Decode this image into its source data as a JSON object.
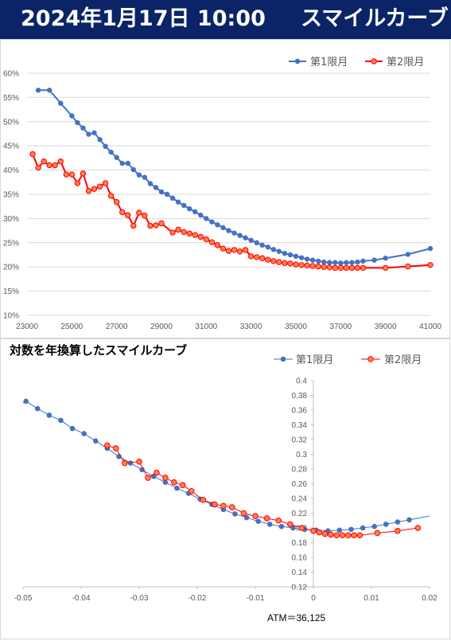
{
  "header": {
    "date_time": "2024年1月17日 10:00",
    "title": "スマイルカーブ"
  },
  "chart2_heading": "対数を年換算したスマイルカーブ",
  "atm_label": "ATM＝36,125",
  "chart_data": [
    {
      "type": "line",
      "x_ticks": [
        "23000",
        "25000",
        "27000",
        "29000",
        "31000",
        "33000",
        "35000",
        "37000",
        "39000",
        "41000"
      ],
      "y_ticks": [
        "10%",
        "15%",
        "20%",
        "25%",
        "30%",
        "35%",
        "40%",
        "45%",
        "50%",
        "55%",
        "60%"
      ],
      "xlim": [
        23000,
        41000
      ],
      "ylim": [
        0.1,
        0.6
      ],
      "grid": "horizontal",
      "legend": "top-right",
      "series": [
        {
          "name": "第1限月",
          "color": "#4472c4",
          "x": [
            23500,
            24000,
            24500,
            25000,
            25250,
            25500,
            25750,
            26000,
            26250,
            26500,
            26750,
            27000,
            27250,
            27500,
            27750,
            28000,
            28250,
            28500,
            28750,
            29000,
            29250,
            29500,
            29750,
            30000,
            30250,
            30500,
            30750,
            31000,
            31250,
            31500,
            31750,
            32000,
            32250,
            32500,
            32750,
            33000,
            33250,
            33500,
            33750,
            34000,
            34250,
            34500,
            34750,
            35000,
            35250,
            35500,
            35750,
            36000,
            36250,
            36500,
            36750,
            37000,
            37250,
            37500,
            37750,
            38000,
            38500,
            39000,
            40000,
            41000
          ],
          "y": [
            0.565,
            0.565,
            0.538,
            0.512,
            0.498,
            0.487,
            0.474,
            0.477,
            0.463,
            0.449,
            0.437,
            0.426,
            0.414,
            0.414,
            0.401,
            0.39,
            0.385,
            0.372,
            0.364,
            0.355,
            0.35,
            0.342,
            0.334,
            0.327,
            0.32,
            0.314,
            0.307,
            0.3,
            0.293,
            0.287,
            0.281,
            0.275,
            0.27,
            0.265,
            0.26,
            0.255,
            0.25,
            0.245,
            0.241,
            0.236,
            0.232,
            0.228,
            0.225,
            0.222,
            0.219,
            0.216,
            0.214,
            0.212,
            0.21,
            0.209,
            0.209,
            0.208,
            0.209,
            0.209,
            0.21,
            0.212,
            0.214,
            0.218,
            0.226,
            0.238
          ]
        },
        {
          "name": "第2限月",
          "color": "#ff0000",
          "x": [
            23250,
            23500,
            23750,
            24000,
            24250,
            24500,
            24750,
            25000,
            25250,
            25500,
            25750,
            26000,
            26250,
            26500,
            26750,
            27000,
            27250,
            27500,
            27750,
            28000,
            28250,
            28500,
            28750,
            29000,
            29500,
            29750,
            30000,
            30250,
            30500,
            30750,
            31000,
            31250,
            31500,
            31750,
            32000,
            32250,
            32500,
            32750,
            33000,
            33250,
            33500,
            33750,
            34000,
            34250,
            34500,
            34750,
            35000,
            35250,
            35500,
            35750,
            36000,
            36250,
            36500,
            36750,
            37000,
            37250,
            37500,
            37750,
            38000,
            39000,
            40000,
            41000
          ],
          "y": [
            0.433,
            0.405,
            0.418,
            0.41,
            0.41,
            0.418,
            0.391,
            0.391,
            0.373,
            0.393,
            0.357,
            0.361,
            0.366,
            0.373,
            0.347,
            0.334,
            0.313,
            0.307,
            0.285,
            0.312,
            0.306,
            0.285,
            0.286,
            0.29,
            0.271,
            0.277,
            0.272,
            0.269,
            0.266,
            0.262,
            0.257,
            0.251,
            0.245,
            0.238,
            0.233,
            0.235,
            0.232,
            0.235,
            0.222,
            0.22,
            0.218,
            0.215,
            0.212,
            0.21,
            0.208,
            0.207,
            0.205,
            0.204,
            0.203,
            0.202,
            0.201,
            0.2,
            0.199,
            0.198,
            0.198,
            0.198,
            0.198,
            0.198,
            0.198,
            0.198,
            0.201,
            0.204
          ]
        }
      ]
    },
    {
      "type": "line",
      "x_ticks": [
        "-0.05",
        "-0.04",
        "-0.03",
        "-0.02",
        "-0.01",
        "0",
        "0.01",
        "0.02"
      ],
      "y_ticks": [
        "0.12",
        "0.14",
        "0.16",
        "0.18",
        "0.2",
        "0.22",
        "0.24",
        "0.26",
        "0.28",
        "0.3",
        "0.32",
        "0.34",
        "0.36",
        "0.38",
        "0.4"
      ],
      "xlim": [
        -0.05,
        0.02
      ],
      "ylim": [
        0.12,
        0.4
      ],
      "grid": "none",
      "legend": "top-right",
      "series": [
        {
          "name": "第1限月",
          "color": "#4472c4",
          "x": [
            -0.0495,
            -0.0475,
            -0.0455,
            -0.0435,
            -0.0415,
            -0.0395,
            -0.0375,
            -0.0355,
            -0.0335,
            -0.0315,
            -0.0295,
            -0.0275,
            -0.0255,
            -0.0235,
            -0.0215,
            -0.0195,
            -0.0175,
            -0.0155,
            -0.0135,
            -0.0115,
            -0.0095,
            -0.0075,
            -0.0055,
            -0.0035,
            -0.0015,
            0.0005,
            0.0025,
            0.0045,
            0.0065,
            0.0085,
            0.0105,
            0.0125,
            0.0145,
            0.0165
          ],
          "y": [
            0.372,
            0.362,
            0.353,
            0.346,
            0.335,
            0.328,
            0.318,
            0.308,
            0.297,
            0.288,
            0.279,
            0.27,
            0.262,
            0.254,
            0.247,
            0.239,
            0.232,
            0.225,
            0.219,
            0.214,
            0.209,
            0.205,
            0.202,
            0.2,
            0.198,
            0.197,
            0.196,
            0.197,
            0.198,
            0.2,
            0.202,
            0.205,
            0.208,
            0.211
          ]
        },
        {
          "name": "第2限月",
          "color": "#ff0000",
          "x": [
            -0.0355,
            -0.034,
            -0.0325,
            -0.03,
            -0.0285,
            -0.027,
            -0.0255,
            -0.024,
            -0.0225,
            -0.021,
            -0.019,
            -0.017,
            -0.0155,
            -0.014,
            -0.012,
            -0.01,
            -0.008,
            -0.006,
            -0.004,
            -0.002,
            0.0,
            0.001,
            0.002,
            0.003,
            0.004,
            0.005,
            0.006,
            0.007,
            0.008,
            0.011,
            0.0145,
            0.018
          ],
          "y": [
            0.312,
            0.308,
            0.288,
            0.29,
            0.268,
            0.275,
            0.268,
            0.262,
            0.258,
            0.25,
            0.238,
            0.232,
            0.23,
            0.228,
            0.22,
            0.216,
            0.213,
            0.21,
            0.205,
            0.2,
            0.196,
            0.194,
            0.192,
            0.191,
            0.19,
            0.19,
            0.19,
            0.19,
            0.19,
            0.193,
            0.196,
            0.2
          ]
        }
      ]
    }
  ]
}
